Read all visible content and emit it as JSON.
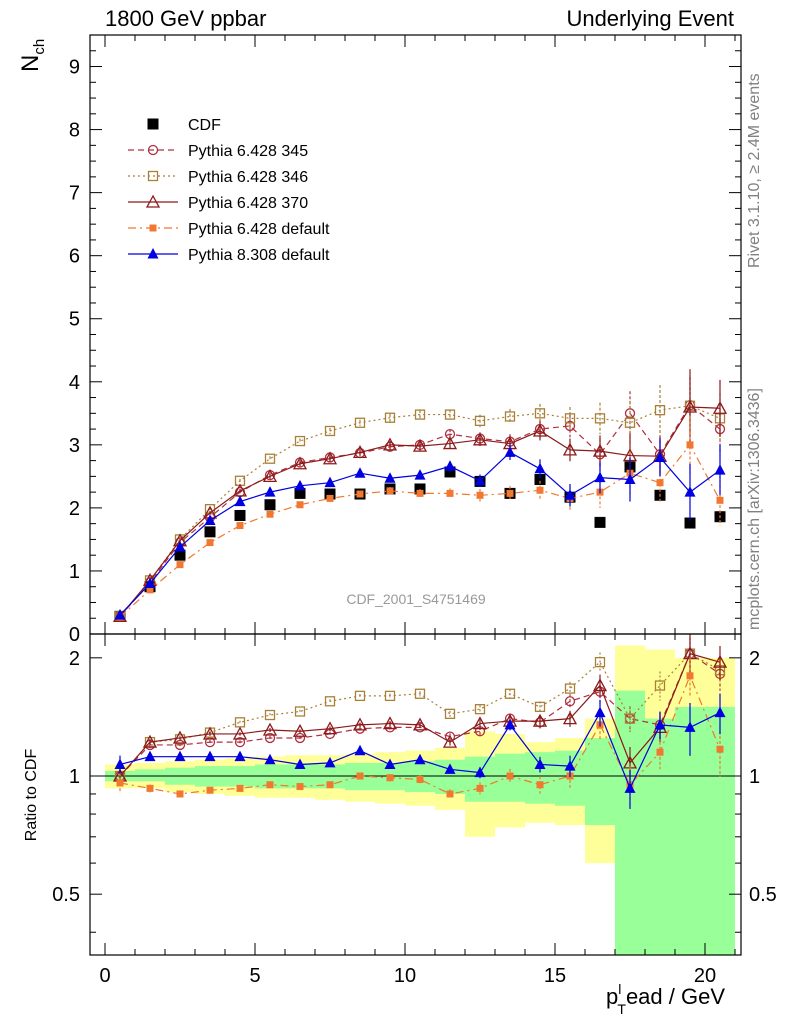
{
  "header": {
    "left": "1800 GeV ppbar",
    "right": "Underlying Event"
  },
  "side": {
    "rivet": "Rivet 3.1.10, ≥ 2.4M events",
    "mcplots": "mcplots.cern.ch [arXiv:1306.3436]"
  },
  "chart_data": [
    {
      "type": "scatter",
      "panel": "main",
      "ylabel_main": "N",
      "ylabel_sub": "ch",
      "xlim": [
        -0.5,
        21.2
      ],
      "ylim": [
        0,
        9.5
      ],
      "yticks": [
        0,
        1,
        2,
        3,
        4,
        5,
        6,
        7,
        8,
        9
      ],
      "annotation": "CDF_2001_S4751469",
      "x": [
        0.5,
        1.5,
        2.5,
        3.5,
        4.5,
        5.5,
        6.5,
        7.5,
        8.5,
        9.5,
        10.5,
        11.5,
        12.5,
        13.5,
        14.5,
        15.5,
        16.5,
        17.5,
        18.5,
        19.5,
        20.5
      ],
      "series": [
        {
          "name": "CDF",
          "color": "#000000",
          "style": "data",
          "values": [
            0.28,
            0.75,
            1.25,
            1.62,
            1.88,
            2.05,
            2.23,
            2.22,
            2.22,
            2.3,
            2.3,
            2.57,
            2.42,
            2.23,
            2.45,
            2.17,
            1.77,
            2.65,
            2.2,
            1.76,
            1.86
          ]
        },
        {
          "name": "Pythia 6.428 345",
          "color": "#b03040",
          "style": "dash-circle",
          "values": [
            0.28,
            0.82,
            1.45,
            1.85,
            2.25,
            2.52,
            2.72,
            2.8,
            2.87,
            2.97,
            3.0,
            3.17,
            3.1,
            3.05,
            3.25,
            3.3,
            2.85,
            3.5,
            2.85,
            3.63,
            3.25
          ],
          "err": [
            0.02,
            0.02,
            0.02,
            0.03,
            0.03,
            0.04,
            0.04,
            0.05,
            0.05,
            0.06,
            0.07,
            0.08,
            0.1,
            0.12,
            0.15,
            0.18,
            0.25,
            0.35,
            0.3,
            0.45,
            0.4
          ]
        },
        {
          "name": "Pythia 6.428 346",
          "color": "#a88038",
          "style": "dot-square",
          "values": [
            0.28,
            0.85,
            1.5,
            1.98,
            2.43,
            2.78,
            3.06,
            3.22,
            3.35,
            3.43,
            3.48,
            3.48,
            3.38,
            3.45,
            3.5,
            3.42,
            3.42,
            3.35,
            3.55,
            3.62,
            3.42
          ],
          "err": [
            0.02,
            0.02,
            0.02,
            0.03,
            0.03,
            0.04,
            0.04,
            0.05,
            0.05,
            0.06,
            0.07,
            0.08,
            0.1,
            0.12,
            0.15,
            0.18,
            0.25,
            0.35,
            0.4,
            0.45,
            0.4
          ]
        },
        {
          "name": "Pythia 6.428 370",
          "color": "#8b1a1a",
          "style": "solid-triangle",
          "values": [
            0.28,
            0.85,
            1.48,
            1.92,
            2.27,
            2.5,
            2.7,
            2.78,
            2.88,
            3.0,
            2.98,
            3.02,
            3.08,
            3.02,
            3.22,
            2.92,
            2.9,
            2.83,
            2.82,
            3.6,
            3.58
          ],
          "err": [
            0.02,
            0.02,
            0.02,
            0.03,
            0.03,
            0.04,
            0.04,
            0.05,
            0.05,
            0.06,
            0.07,
            0.08,
            0.1,
            0.12,
            0.15,
            0.18,
            0.25,
            0.35,
            0.3,
            0.6,
            0.45
          ]
        },
        {
          "name": "Pythia 6.428 default",
          "color": "#f07830",
          "style": "dashdot-filledsquare",
          "values": [
            0.27,
            0.7,
            1.1,
            1.45,
            1.72,
            1.9,
            2.05,
            2.15,
            2.22,
            2.27,
            2.23,
            2.23,
            2.2,
            2.23,
            2.28,
            2.15,
            2.25,
            2.55,
            2.4,
            3.0,
            2.12
          ],
          "err": [
            0.02,
            0.02,
            0.02,
            0.03,
            0.03,
            0.04,
            0.04,
            0.05,
            0.05,
            0.06,
            0.07,
            0.08,
            0.1,
            0.12,
            0.15,
            0.18,
            0.25,
            0.35,
            0.3,
            0.45,
            0.4
          ]
        },
        {
          "name": "Pythia 8.308 default",
          "color": "#0000e0",
          "style": "solid-filledtriangle",
          "values": [
            0.3,
            0.8,
            1.38,
            1.8,
            2.1,
            2.25,
            2.35,
            2.4,
            2.55,
            2.47,
            2.52,
            2.66,
            2.43,
            2.88,
            2.62,
            2.2,
            2.48,
            2.45,
            2.8,
            2.25,
            2.6
          ],
          "err": [
            0.02,
            0.02,
            0.02,
            0.03,
            0.03,
            0.04,
            0.04,
            0.05,
            0.05,
            0.06,
            0.07,
            0.08,
            0.1,
            0.12,
            0.15,
            0.18,
            0.25,
            0.35,
            0.3,
            0.45,
            0.4
          ]
        }
      ]
    },
    {
      "type": "scatter",
      "panel": "ratio",
      "ylabel": "Ratio to CDF",
      "xlabel_main": "p",
      "xlabel_sub": "T",
      "xlabel_sup": "l",
      "xlabel_rest": "ead / GeV",
      "xlim": [
        -0.5,
        21.2
      ],
      "ylim": [
        0.35,
        2.3
      ],
      "yticks": [
        0.5,
        1,
        2
      ],
      "xticks": [
        0,
        5,
        10,
        15,
        20
      ],
      "x": [
        0.5,
        1.5,
        2.5,
        3.5,
        4.5,
        5.5,
        6.5,
        7.5,
        8.5,
        9.5,
        10.5,
        11.5,
        12.5,
        13.5,
        14.5,
        15.5,
        16.5,
        17.5,
        18.5,
        19.5,
        20.5
      ],
      "band_inner": {
        "color": "#99ff99",
        "lo": [
          0.97,
          0.97,
          0.95,
          0.94,
          0.94,
          0.93,
          0.93,
          0.93,
          0.92,
          0.92,
          0.91,
          0.9,
          0.86,
          0.86,
          0.85,
          0.84,
          0.75,
          0.35,
          0.35,
          0.35,
          0.35
        ],
        "hi": [
          1.03,
          1.04,
          1.05,
          1.06,
          1.06,
          1.07,
          1.07,
          1.07,
          1.08,
          1.08,
          1.09,
          1.1,
          1.12,
          1.14,
          1.15,
          1.16,
          1.25,
          1.65,
          1.4,
          1.5,
          1.5
        ]
      },
      "band_outer": {
        "color": "#ffff99",
        "lo": [
          0.93,
          0.93,
          0.91,
          0.9,
          0.89,
          0.88,
          0.88,
          0.87,
          0.86,
          0.85,
          0.84,
          0.82,
          0.7,
          0.74,
          0.76,
          0.75,
          0.6,
          0.35,
          0.35,
          0.35,
          0.35
        ],
        "hi": [
          1.07,
          1.08,
          1.09,
          1.1,
          1.11,
          1.12,
          1.13,
          1.13,
          1.14,
          1.15,
          1.16,
          1.18,
          1.3,
          1.28,
          1.22,
          1.25,
          1.4,
          2.15,
          2.1,
          2.0,
          2.0
        ]
      },
      "series": [
        {
          "name": "Pythia 6.428 345",
          "color": "#b03040",
          "style": "dash-circle",
          "values": [
            1.0,
            1.2,
            1.2,
            1.22,
            1.22,
            1.25,
            1.25,
            1.28,
            1.32,
            1.33,
            1.33,
            1.26,
            1.3,
            1.4,
            1.37,
            1.55,
            1.64,
            1.4,
            1.35,
            2.05,
            1.82
          ]
        },
        {
          "name": "Pythia 6.428 346",
          "color": "#a88038",
          "style": "dot-square",
          "values": [
            1.0,
            1.22,
            1.24,
            1.29,
            1.37,
            1.43,
            1.46,
            1.55,
            1.6,
            1.6,
            1.62,
            1.44,
            1.48,
            1.62,
            1.5,
            1.67,
            1.95,
            1.4,
            1.7,
            2.05,
            1.86
          ]
        },
        {
          "name": "Pythia 6.428 370",
          "color": "#8b1a1a",
          "style": "solid-triangle",
          "values": [
            1.0,
            1.22,
            1.25,
            1.28,
            1.28,
            1.31,
            1.3,
            1.32,
            1.35,
            1.36,
            1.35,
            1.22,
            1.36,
            1.38,
            1.38,
            1.4,
            1.7,
            1.08,
            1.33,
            2.05,
            1.95
          ]
        },
        {
          "name": "Pythia 6.428 default",
          "color": "#f07830",
          "style": "dashdot-filledsquare",
          "values": [
            0.96,
            0.93,
            0.9,
            0.92,
            0.93,
            0.95,
            0.94,
            0.95,
            1.0,
            0.99,
            0.98,
            0.9,
            0.93,
            1.0,
            0.95,
            1.0,
            1.35,
            0.95,
            1.15,
            1.8,
            1.17
          ]
        },
        {
          "name": "Pythia 8.308 default",
          "color": "#0000e0",
          "style": "solid-filledtriangle",
          "values": [
            1.07,
            1.12,
            1.12,
            1.12,
            1.12,
            1.1,
            1.07,
            1.08,
            1.16,
            1.07,
            1.1,
            1.04,
            1.02,
            1.35,
            1.07,
            1.06,
            1.45,
            0.93,
            1.35,
            1.33,
            1.45
          ]
        }
      ]
    }
  ]
}
